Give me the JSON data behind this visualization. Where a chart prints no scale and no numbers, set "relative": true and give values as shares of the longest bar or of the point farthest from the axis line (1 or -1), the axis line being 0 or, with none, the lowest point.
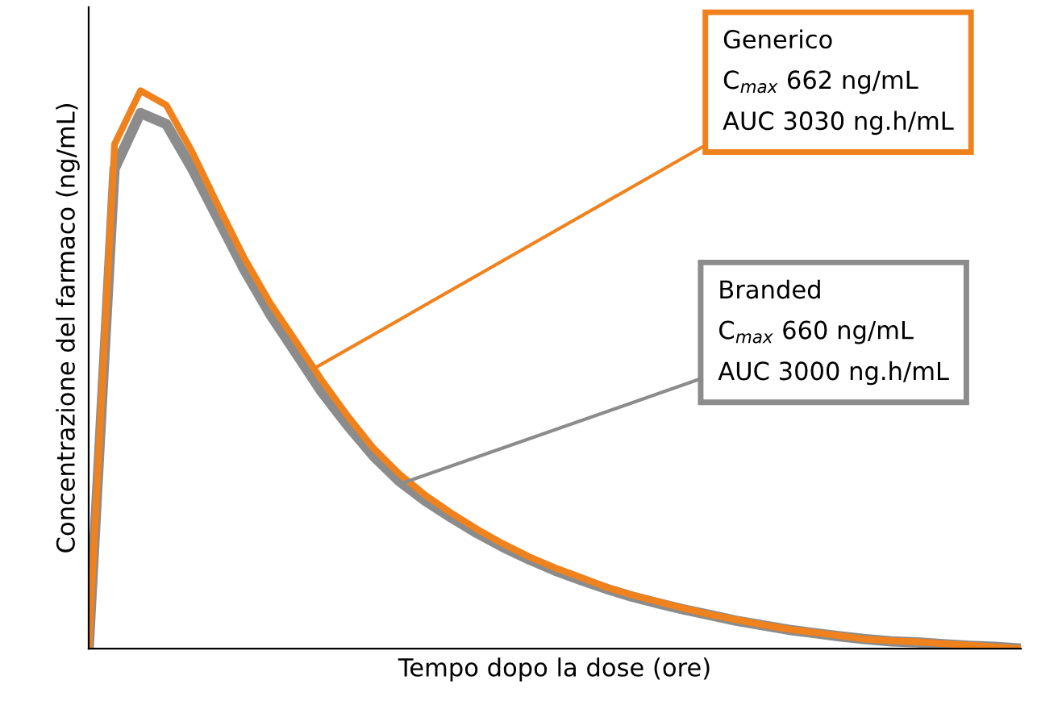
{
  "chart_data": {
    "type": "line",
    "relative": true,
    "xlabel": "Tempo dopo la dose (ore)",
    "ylabel": "Concentrazione del farmaco (ng/mL)",
    "categories": [
      null,
      null,
      null,
      null,
      null,
      null,
      null,
      null,
      null,
      null,
      null,
      null,
      null,
      null,
      null,
      null,
      null,
      null,
      null,
      null,
      null,
      null,
      null,
      null,
      null,
      null,
      null,
      null,
      null,
      null,
      null,
      null,
      null,
      null,
      null,
      null,
      null
    ],
    "series": [
      {
        "color": "#8c8c8c",
        "values": [
          0,
          0.86,
          0.96,
          0.94,
          0.86,
          0.77,
          0.68,
          0.6,
          0.53,
          0.46,
          0.4,
          0.345,
          0.3,
          0.265,
          0.235,
          0.207,
          0.182,
          0.16,
          0.14,
          0.123,
          0.107,
          0.093,
          0.081,
          0.07,
          0.06,
          0.05,
          0.042,
          0.034,
          0.028,
          0.022,
          0.017,
          0.013,
          0.011,
          0.008,
          0.005,
          0.003,
          0
        ]
      },
      {
        "color": "#f0821e",
        "values": [
          0,
          0.904,
          1,
          0.974,
          0.89,
          0.794,
          0.701,
          0.62,
          0.551,
          0.481,
          0.417,
          0.359,
          0.313,
          0.275,
          0.243,
          0.214,
          0.188,
          0.165,
          0.145,
          0.128,
          0.11,
          0.096,
          0.084,
          0.072,
          0.061,
          0.052,
          0.043,
          0.035,
          0.029,
          0.023,
          0.017,
          0.014,
          0.012,
          0.009,
          0.006,
          0.003,
          0
        ]
      }
    ],
    "annotations": [
      "Generico\nC$_{max}$ 662 ng/mL\nAUC 3030 ng.h/mL",
      "Branded\nC$_{max}$ 660 ng/mL\nAUC 3000 ng.h/mL"
    ],
    "line_style": "solid",
    "marker": "none"
  }
}
